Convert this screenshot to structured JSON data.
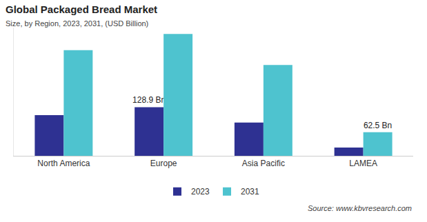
{
  "chart_data": {
    "type": "bar",
    "title": "Global Packaged Bread Market",
    "subtitle": "Size, by Region, 2023, 2031, (USD Billion)",
    "categories": [
      "North America",
      "Europe",
      "Asia Pacific",
      "LAMEA"
    ],
    "series": [
      {
        "name": "2023",
        "color": "#2e3192",
        "values": [
          108,
          128.9,
          88,
          22
        ],
        "value_labels": [
          null,
          "128.9 Bn",
          null,
          null
        ]
      },
      {
        "name": "2031",
        "color": "#4ec3cf",
        "values": [
          280,
          323,
          241,
          62.5
        ],
        "value_labels": [
          null,
          null,
          null,
          "62.5 Bn"
        ]
      }
    ],
    "ylim": [
      0,
      340
    ],
    "yticks": [],
    "grid": false,
    "legend": "bottom",
    "data_labels": true,
    "tick_labels": "x",
    "source": "Source: www.kbvresearch.com"
  }
}
